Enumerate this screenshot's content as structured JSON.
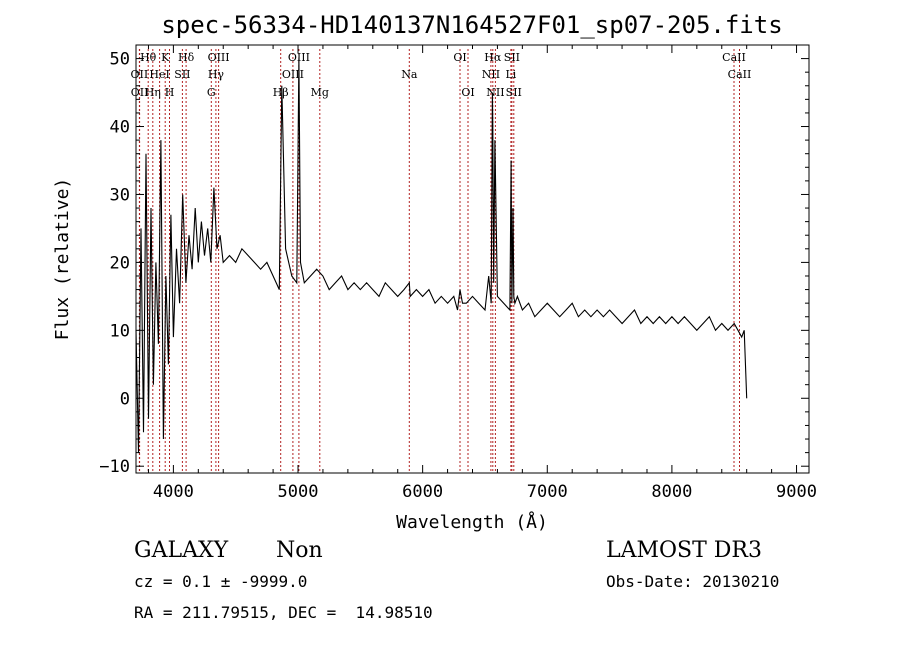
{
  "chart_data": {
    "type": "line",
    "title": "spec-56334-HD140137N164527F01_sp07-205.fits",
    "xlabel": "Wavelength (Å)",
    "ylabel": "Flux (relative)",
    "xlim": [
      3700,
      9100
    ],
    "ylim": [
      -11,
      52
    ],
    "xticks": [
      4000,
      5000,
      6000,
      7000,
      8000,
      9000
    ],
    "yticks": [
      -10,
      0,
      10,
      20,
      30,
      40,
      50
    ],
    "grid": false,
    "line_color": "#000000",
    "marker_color": "#b22222",
    "lines": [
      {
        "label": "OII",
        "wavelength": 3727,
        "row": 1
      },
      {
        "label": "OII",
        "wavelength": 3729,
        "row": 2
      },
      {
        "label": "Hθ",
        "wavelength": 3798,
        "row": 0
      },
      {
        "label": "HeI",
        "wavelength": 3889,
        "row": 1
      },
      {
        "label": "Hη",
        "wavelength": 3835,
        "row": 2
      },
      {
        "label": "K",
        "wavelength": 3934,
        "row": 0
      },
      {
        "label": "H",
        "wavelength": 3969,
        "row": 2
      },
      {
        "label": "Hδ",
        "wavelength": 4102,
        "row": 0
      },
      {
        "label": "SII",
        "wavelength": 4072,
        "row": 1
      },
      {
        "label": "G",
        "wavelength": 4304,
        "row": 2
      },
      {
        "label": "OIII",
        "wavelength": 4363,
        "row": 0
      },
      {
        "label": "Hγ",
        "wavelength": 4341,
        "row": 1
      },
      {
        "label": "Hβ",
        "wavelength": 4861,
        "row": 2
      },
      {
        "label": "OIII",
        "wavelength": 5007,
        "row": 0
      },
      {
        "label": "OIII",
        "wavelength": 4959,
        "row": 1
      },
      {
        "label": "Mg",
        "wavelength": 5175,
        "row": 2
      },
      {
        "label": "Na",
        "wavelength": 5893,
        "row": 1
      },
      {
        "label": "OI",
        "wavelength": 6300,
        "row": 0
      },
      {
        "label": "OI",
        "wavelength": 6364,
        "row": 2
      },
      {
        "label": "Hα",
        "wavelength": 6563,
        "row": 0
      },
      {
        "label": "SII",
        "wavelength": 6716,
        "row": 0
      },
      {
        "label": "NII",
        "wavelength": 6548,
        "row": 1
      },
      {
        "label": "Li",
        "wavelength": 6708,
        "row": 1
      },
      {
        "label": "NII",
        "wavelength": 6584,
        "row": 2
      },
      {
        "label": "SII",
        "wavelength": 6731,
        "row": 2
      },
      {
        "label": "CaII",
        "wavelength": 8498,
        "row": 0
      },
      {
        "label": "CaII",
        "wavelength": 8542,
        "row": 1
      }
    ],
    "spectrum": {
      "x": [
        3700,
        3720,
        3740,
        3760,
        3780,
        3800,
        3820,
        3840,
        3860,
        3880,
        3900,
        3920,
        3940,
        3960,
        3980,
        4000,
        4025,
        4050,
        4075,
        4100,
        4125,
        4150,
        4175,
        4200,
        4225,
        4250,
        4275,
        4300,
        4325,
        4350,
        4375,
        4400,
        4450,
        4500,
        4550,
        4600,
        4650,
        4700,
        4750,
        4800,
        4850,
        4870,
        4900,
        4950,
        4990,
        5007,
        5020,
        5050,
        5100,
        5150,
        5200,
        5250,
        5300,
        5350,
        5400,
        5450,
        5500,
        5550,
        5600,
        5650,
        5700,
        5750,
        5800,
        5850,
        5893,
        5900,
        5950,
        6000,
        6050,
        6100,
        6150,
        6200,
        6250,
        6280,
        6300,
        6320,
        6350,
        6400,
        6450,
        6500,
        6530,
        6550,
        6560,
        6563,
        6570,
        6580,
        6600,
        6650,
        6700,
        6710,
        6716,
        6725,
        6731,
        6740,
        6760,
        6800,
        6850,
        6900,
        6950,
        7000,
        7050,
        7100,
        7150,
        7200,
        7250,
        7300,
        7350,
        7400,
        7450,
        7500,
        7550,
        7600,
        7650,
        7700,
        7750,
        7800,
        7850,
        7900,
        7950,
        8000,
        8050,
        8100,
        8150,
        8200,
        8250,
        8300,
        8350,
        8400,
        8450,
        8500,
        8530,
        8560,
        8580,
        8600
      ],
      "y": [
        10,
        -8,
        25,
        -5,
        36,
        -3,
        28,
        2,
        20,
        8,
        38,
        -6,
        18,
        5,
        27,
        9,
        22,
        14,
        30,
        17,
        24,
        19,
        28,
        20,
        26,
        21,
        25,
        20,
        31,
        22,
        24,
        20,
        21,
        20,
        22,
        21,
        20,
        19,
        20,
        18,
        16,
        46,
        22,
        18,
        17,
        50,
        20,
        17,
        18,
        19,
        18,
        16,
        17,
        18,
        16,
        17,
        16,
        17,
        16,
        15,
        17,
        16,
        15,
        16,
        17,
        15,
        16,
        15,
        16,
        14,
        15,
        14,
        15,
        13,
        16,
        14,
        14,
        15,
        14,
        13,
        18,
        14,
        45,
        40,
        17,
        38,
        15,
        14,
        13,
        35,
        14,
        28,
        15,
        14,
        15,
        13,
        14,
        12,
        13,
        14,
        13,
        12,
        13,
        14,
        12,
        13,
        12,
        13,
        12,
        13,
        12,
        11,
        12,
        13,
        11,
        12,
        11,
        12,
        11,
        12,
        11,
        12,
        11,
        10,
        11,
        12,
        10,
        11,
        10,
        11,
        10,
        9,
        10,
        0
      ]
    }
  },
  "footer": {
    "class": "GALAXY",
    "subclass": "Non",
    "survey": "LAMOST DR3",
    "cz": "cz = 0.1 ± -9999.0",
    "obs_date": "Obs-Date: 20130210",
    "coords": "RA = 211.79515, DEC =  14.98510"
  }
}
